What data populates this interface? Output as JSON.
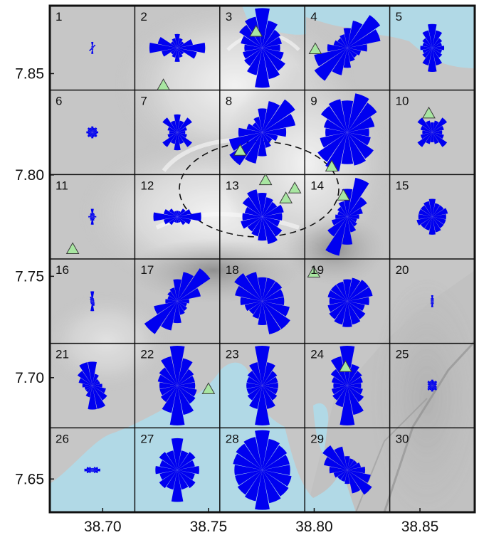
{
  "axes": {
    "x_ticks": [
      {
        "label": "38.70",
        "value": 38.7
      },
      {
        "label": "38.75",
        "value": 38.75
      },
      {
        "label": "38.80",
        "value": 38.8
      },
      {
        "label": "38.85",
        "value": 38.85
      }
    ],
    "y_ticks": [
      {
        "label": "7.85",
        "value": 7.85
      },
      {
        "label": "7.80",
        "value": 7.8
      },
      {
        "label": "7.75",
        "value": 7.75
      },
      {
        "label": "7.70",
        "value": 7.7
      },
      {
        "label": "7.65",
        "value": 7.65
      }
    ],
    "x_range": [
      38.675,
      38.8759
    ],
    "y_range": [
      7.6336,
      7.8835
    ]
  },
  "grid": {
    "cols": 5,
    "rows": 6
  },
  "cells": [
    {
      "label": "1",
      "rose": [
        0.15,
        0.05,
        0.1,
        0.04,
        0.03,
        0.02,
        0.03,
        0.05,
        0.15,
        0.05,
        0.1,
        0.04,
        0.03,
        0.02,
        0.03,
        0.05
      ]
    },
    {
      "label": "2",
      "rose": [
        0.35,
        0.25,
        0.2,
        0.4,
        0.7,
        0.5,
        0.2,
        0.25,
        0.35,
        0.25,
        0.2,
        0.4,
        0.7,
        0.5,
        0.2,
        0.25
      ]
    },
    {
      "label": "3",
      "rose": [
        1.0,
        0.7,
        0.55,
        0.5,
        0.45,
        0.55,
        0.7,
        0.8,
        1.0,
        0.7,
        0.55,
        0.5,
        0.45,
        0.55,
        0.7,
        0.8
      ]
    },
    {
      "label": "4",
      "rose": [
        0.5,
        0.7,
        1.0,
        0.85,
        0.5,
        0.35,
        0.3,
        0.35,
        0.5,
        0.7,
        1.0,
        0.85,
        0.5,
        0.35,
        0.3,
        0.35
      ]
    },
    {
      "label": "5",
      "rose": [
        0.6,
        0.45,
        0.3,
        0.25,
        0.3,
        0.25,
        0.3,
        0.45,
        0.6,
        0.45,
        0.3,
        0.25,
        0.3,
        0.25,
        0.3,
        0.45
      ]
    },
    {
      "label": "6",
      "rose": [
        0.15,
        0.12,
        0.15,
        0.12,
        0.15,
        0.12,
        0.15,
        0.12,
        0.15,
        0.12,
        0.15,
        0.12,
        0.15,
        0.12,
        0.15,
        0.12
      ]
    },
    {
      "label": "7",
      "rose": [
        0.45,
        0.3,
        0.45,
        0.25,
        0.2,
        0.25,
        0.45,
        0.3,
        0.45,
        0.3,
        0.45,
        0.25,
        0.2,
        0.25,
        0.45,
        0.3
      ]
    },
    {
      "label": "8",
      "rose": [
        0.6,
        0.8,
        1.0,
        0.85,
        0.6,
        0.4,
        0.3,
        0.4,
        0.6,
        0.8,
        1.0,
        0.85,
        0.6,
        0.4,
        0.3,
        0.4
      ]
    },
    {
      "label": "9",
      "rose": [
        0.8,
        1.0,
        0.9,
        0.7,
        0.55,
        0.6,
        0.8,
        0.85,
        0.8,
        1.0,
        0.9,
        0.7,
        0.55,
        0.6,
        0.8,
        0.85
      ]
    },
    {
      "label": "10",
      "rose": [
        0.25,
        0.3,
        0.45,
        0.3,
        0.25,
        0.3,
        0.45,
        0.3,
        0.25,
        0.3,
        0.45,
        0.3,
        0.25,
        0.3,
        0.45,
        0.3
      ]
    },
    {
      "label": "11",
      "rose": [
        0.2,
        0.1,
        0.08,
        0.06,
        0.1,
        0.06,
        0.08,
        0.1,
        0.2,
        0.1,
        0.08,
        0.06,
        0.1,
        0.06,
        0.08,
        0.1
      ]
    },
    {
      "label": "12",
      "rose": [
        0.15,
        0.15,
        0.25,
        0.35,
        0.6,
        0.35,
        0.25,
        0.15,
        0.15,
        0.15,
        0.25,
        0.35,
        0.6,
        0.35,
        0.25,
        0.15
      ]
    },
    {
      "label": "13",
      "rose": [
        0.6,
        0.5,
        0.45,
        0.55,
        0.5,
        0.45,
        0.6,
        0.7,
        0.6,
        0.5,
        0.45,
        0.55,
        0.5,
        0.45,
        0.6,
        0.7
      ]
    },
    {
      "label": "14",
      "rose": [
        0.7,
        1.0,
        0.6,
        0.4,
        0.3,
        0.25,
        0.3,
        0.4,
        0.7,
        1.0,
        0.6,
        0.4,
        0.3,
        0.25,
        0.3,
        0.4
      ]
    },
    {
      "label": "15",
      "rose": [
        0.45,
        0.35,
        0.35,
        0.4,
        0.35,
        0.35,
        0.35,
        0.4,
        0.45,
        0.35,
        0.35,
        0.4,
        0.35,
        0.35,
        0.35,
        0.4
      ]
    },
    {
      "label": "16",
      "rose": [
        0.25,
        0.08,
        0.06,
        0.05,
        0.05,
        0.05,
        0.08,
        0.12,
        0.25,
        0.08,
        0.06,
        0.05,
        0.05,
        0.05,
        0.08,
        0.12
      ]
    },
    {
      "label": "17",
      "rose": [
        0.55,
        0.75,
        1.0,
        0.6,
        0.3,
        0.25,
        0.3,
        0.35,
        0.55,
        0.75,
        1.0,
        0.6,
        0.3,
        0.25,
        0.3,
        0.35
      ]
    },
    {
      "label": "18",
      "rose": [
        0.6,
        0.6,
        0.6,
        0.55,
        0.55,
        0.7,
        0.85,
        0.85,
        0.6,
        0.45,
        0.4,
        0.45,
        0.55,
        0.7,
        0.85,
        0.75
      ]
    },
    {
      "label": "19",
      "rose": [
        0.55,
        0.6,
        0.65,
        0.65,
        0.55,
        0.45,
        0.55,
        0.6,
        0.65,
        0.6,
        0.55,
        0.5,
        0.45,
        0.5,
        0.5,
        0.5
      ]
    },
    {
      "label": "20",
      "rose": [
        0.15,
        0.08,
        0.05,
        0.04,
        0.03,
        0.04,
        0.05,
        0.08,
        0.15,
        0.08,
        0.05,
        0.04,
        0.03,
        0.04,
        0.05,
        0.08
      ]
    },
    {
      "label": "21",
      "rose": [
        0.6,
        0.3,
        0.2,
        0.2,
        0.25,
        0.35,
        0.45,
        0.6,
        0.6,
        0.3,
        0.2,
        0.2,
        0.25,
        0.35,
        0.45,
        0.6
      ]
    },
    {
      "label": "22",
      "rose": [
        1.0,
        0.7,
        0.5,
        0.45,
        0.45,
        0.5,
        0.55,
        0.75,
        1.0,
        0.7,
        0.5,
        0.45,
        0.45,
        0.5,
        0.55,
        0.75
      ]
    },
    {
      "label": "23",
      "rose": [
        1.0,
        0.6,
        0.45,
        0.4,
        0.4,
        0.4,
        0.45,
        0.6,
        1.0,
        0.6,
        0.45,
        0.4,
        0.4,
        0.4,
        0.45,
        0.6
      ]
    },
    {
      "label": "24",
      "rose": [
        1.0,
        0.55,
        0.45,
        0.4,
        0.35,
        0.4,
        0.5,
        0.75,
        1.0,
        0.55,
        0.45,
        0.4,
        0.35,
        0.4,
        0.5,
        0.75
      ]
    },
    {
      "label": "25",
      "rose": [
        0.15,
        0.12,
        0.15,
        0.12,
        0.1,
        0.12,
        0.15,
        0.12,
        0.15,
        0.12,
        0.15,
        0.12,
        0.1,
        0.12,
        0.15,
        0.12
      ]
    },
    {
      "label": "26",
      "rose": [
        0.05,
        0.05,
        0.1,
        0.15,
        0.2,
        0.15,
        0.1,
        0.05,
        0.05,
        0.05,
        0.1,
        0.15,
        0.2,
        0.15,
        0.1,
        0.05
      ]
    },
    {
      "label": "27",
      "rose": [
        0.8,
        0.5,
        0.55,
        0.45,
        0.55,
        0.45,
        0.55,
        0.5,
        0.8,
        0.5,
        0.55,
        0.45,
        0.55,
        0.45,
        0.55,
        0.5
      ]
    },
    {
      "label": "28",
      "rose": [
        1.0,
        0.8,
        0.75,
        0.7,
        0.7,
        0.75,
        0.8,
        0.85,
        1.0,
        0.8,
        0.75,
        0.7,
        0.7,
        0.75,
        0.8,
        0.85
      ]
    },
    {
      "label": "29",
      "rose": [
        0.35,
        0.3,
        0.3,
        0.35,
        0.45,
        0.6,
        0.75,
        0.6,
        0.35,
        0.3,
        0.3,
        0.35,
        0.45,
        0.6,
        0.75,
        0.6
      ]
    },
    {
      "label": "30",
      "rose": [
        0,
        0,
        0,
        0,
        0,
        0,
        0,
        0,
        0,
        0,
        0,
        0,
        0,
        0,
        0,
        0
      ]
    }
  ],
  "stations": [
    {
      "lon": 38.7725,
      "lat": 7.8705
    },
    {
      "lon": 38.8005,
      "lat": 7.8619
    },
    {
      "lon": 38.7287,
      "lat": 7.8441
    },
    {
      "lon": 38.765,
      "lat": 7.8118
    },
    {
      "lon": 38.8083,
      "lat": 7.804
    },
    {
      "lon": 38.777,
      "lat": 7.7973
    },
    {
      "lon": 38.7908,
      "lat": 7.7932
    },
    {
      "lon": 38.7866,
      "lat": 7.7883
    },
    {
      "lon": 38.8138,
      "lat": 7.7897
    },
    {
      "lon": 38.6858,
      "lat": 7.7633
    },
    {
      "lon": 38.7998,
      "lat": 7.7517
    },
    {
      "lon": 38.8148,
      "lat": 7.7051
    },
    {
      "lon": 38.75,
      "lat": 7.6942
    },
    {
      "lon": 38.8542,
      "lat": 7.8302
    }
  ],
  "colors": {
    "rose": "#0000f0",
    "station_fill": "#a8e6a1",
    "station_stroke": "#3a3a3a",
    "water": "#b1d9e6",
    "terrain": "#c8c8c8",
    "grid": "#111111"
  }
}
